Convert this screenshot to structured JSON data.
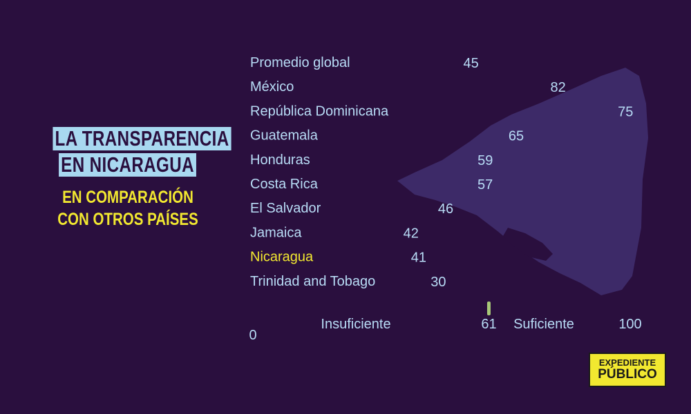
{
  "heading": {
    "title_lines": [
      "LA TRANSPARENCIA",
      "EN NICARAGUA"
    ],
    "subtitle_lines": [
      "EN COMPARACIÓN",
      "CON OTROS PAÍSES"
    ]
  },
  "logo": {
    "line1": "EXPEDIENTE",
    "line2": "PÚBLICO"
  },
  "colors": {
    "background": "#2a0f3e",
    "bar_start": "#86c8f0",
    "bar_end": "#e8e030",
    "label": "#b8dcf6",
    "highlight": "#f2e830",
    "map": "#3d2a68"
  },
  "chart_data": {
    "type": "bar",
    "orientation": "horizontal",
    "categories": [
      "Promedio global",
      "México",
      "República Dominicana",
      "Guatemala",
      "Honduras",
      "Costa Rica",
      "El Salvador",
      "Jamaica",
      "Nicaragua",
      "Trinidad and Tobago"
    ],
    "values": [
      45,
      82,
      75,
      65,
      59,
      57,
      46,
      42,
      41,
      30
    ],
    "highlight": "Nicaragua",
    "xlim": [
      0,
      100
    ],
    "scale": {
      "min_label": "0",
      "max_label": "100",
      "threshold": 61,
      "threshold_label": "61",
      "left_zone_label": "Insuficiente",
      "right_zone_label": "Suficiente"
    }
  }
}
